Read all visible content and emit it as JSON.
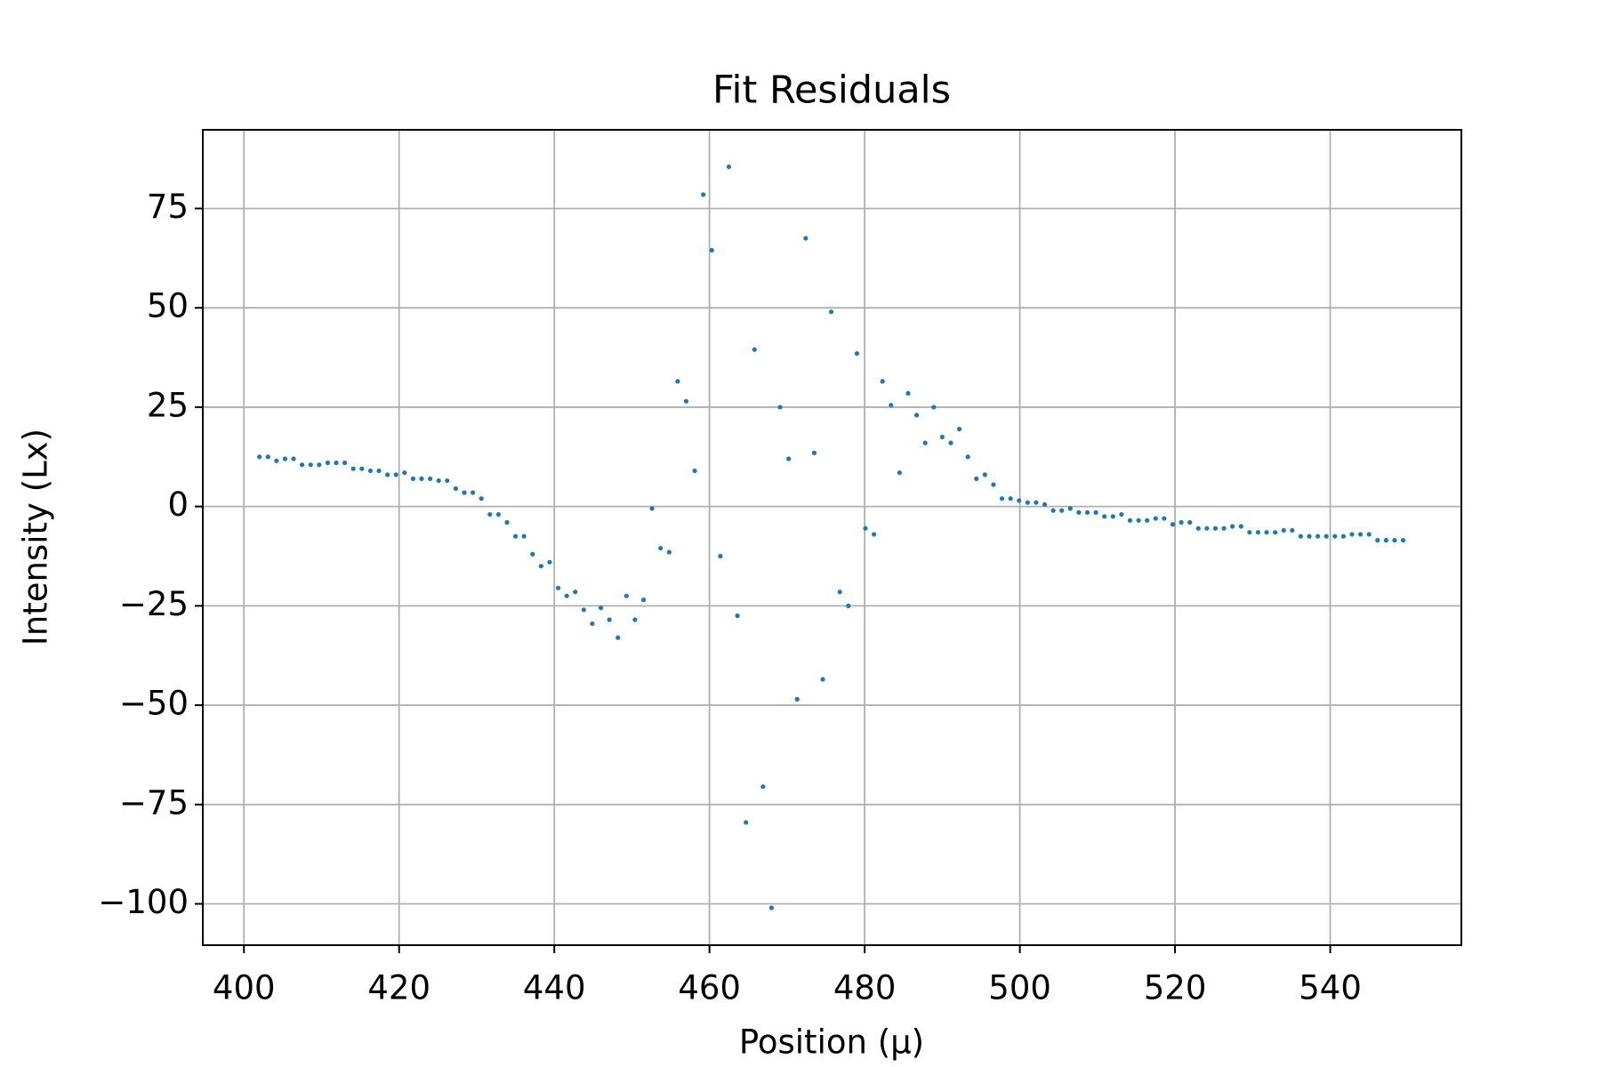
{
  "chart_data": {
    "type": "scatter",
    "title": "Fit Residuals",
    "x_label": "Position (μ)",
    "y_label": "Intensity (Lx)",
    "color": "#1f77b4",
    "grid": true,
    "xlim": [
      394.7,
      556.9
    ],
    "ylim": [
      -110.4,
      94.8
    ],
    "xticks": [
      400,
      420,
      440,
      460,
      480,
      500,
      520,
      540
    ],
    "yticks": [
      {
        "value": -100,
        "label": "−100"
      },
      {
        "value": -75,
        "label": "−75"
      },
      {
        "value": -50,
        "label": "−50"
      },
      {
        "value": -25,
        "label": "−25"
      },
      0,
      25,
      50,
      75
    ],
    "x": [
      402,
      403.1,
      404.2,
      405.3,
      406.4,
      407.5,
      408.6,
      409.7,
      410.8,
      411.9,
      413,
      414.1,
      415.2,
      416.3,
      417.4,
      418.5,
      419.6,
      420.7,
      421.8,
      422.9,
      424,
      425.1,
      426.2,
      427.3,
      428.4,
      429.5,
      430.6,
      431.7,
      432.8,
      433.9,
      435,
      436.1,
      437.2,
      438.3,
      439.4,
      440.5,
      441.6,
      442.7,
      443.8,
      444.9,
      446,
      447.1,
      448.2,
      449.3,
      450.4,
      451.5,
      452.6,
      453.7,
      454.8,
      455.9,
      457,
      458.1,
      459.2,
      460.3,
      461.4,
      462.5,
      463.6,
      464.7,
      465.8,
      466.9,
      468,
      469.1,
      470.2,
      471.3,
      472.4,
      473.5,
      474.6,
      475.7,
      476.8,
      477.9,
      479,
      480.1,
      481.2,
      482.3,
      483.4,
      484.5,
      485.6,
      486.7,
      487.8,
      488.9,
      490,
      491.1,
      492.2,
      493.3,
      494.4,
      495.5,
      496.6,
      497.7,
      498.8,
      499.9,
      501,
      502.1,
      503.2,
      504.3,
      505.4,
      506.5,
      507.6,
      508.7,
      509.8,
      510.9,
      512,
      513.1,
      514.2,
      515.3,
      516.4,
      517.5,
      518.6,
      519.7,
      520.8,
      521.9,
      523,
      524.1,
      525.2,
      526.3,
      527.4,
      528.5,
      529.6,
      530.7,
      531.8,
      532.9,
      534,
      535.1,
      536.2,
      537.3,
      538.4,
      539.5,
      540.6,
      541.7,
      542.8,
      543.9,
      545,
      546.1,
      547.2,
      548.3,
      549.4
    ],
    "values": [
      12.5,
      12.5,
      11.5,
      12,
      12,
      10.5,
      10.5,
      10.5,
      11,
      11,
      11,
      9.5,
      9.5,
      9,
      9,
      8,
      8,
      8.5,
      7,
      7,
      7,
      6.5,
      6.5,
      4.5,
      3.5,
      3.5,
      2,
      -2,
      -2,
      -4,
      -7.5,
      -7.5,
      -12,
      -15,
      -14,
      -20.5,
      -22.5,
      -21.5,
      -26,
      -29.5,
      -25.5,
      -28.5,
      -33,
      -22.5,
      -28.5,
      -23.5,
      -0.5,
      -10.5,
      -11.5,
      31.5,
      26.5,
      9,
      78.5,
      64.5,
      -12.5,
      85.5,
      -27.5,
      -79.5,
      39.5,
      -70.5,
      -101,
      25,
      12,
      -48.5,
      67.5,
      13.5,
      -43.5,
      49,
      -21.5,
      -25,
      38.5,
      -5.5,
      -7,
      31.5,
      25.5,
      8.5,
      28.5,
      23,
      16,
      25,
      17.5,
      16,
      19.5,
      12.5,
      7,
      8,
      5.5,
      2,
      2,
      1.5,
      1,
      1,
      0.5,
      -1,
      -1,
      -0.5,
      -1.5,
      -1.5,
      -1.5,
      -2.5,
      -2.5,
      -2,
      -3.5,
      -3.5,
      -3.5,
      -3,
      -3,
      -4.5,
      -4,
      -4,
      -5.5,
      -5.5,
      -5.5,
      -5.5,
      -5,
      -5,
      -6.5,
      -6.5,
      -6.5,
      -6.5,
      -6,
      -6,
      -7.5,
      -7.5,
      -7.5,
      -7.5,
      -7.5,
      -7.5,
      -7,
      -7,
      -7,
      -8.5,
      -8.5,
      -8.5,
      -8.5
    ]
  }
}
